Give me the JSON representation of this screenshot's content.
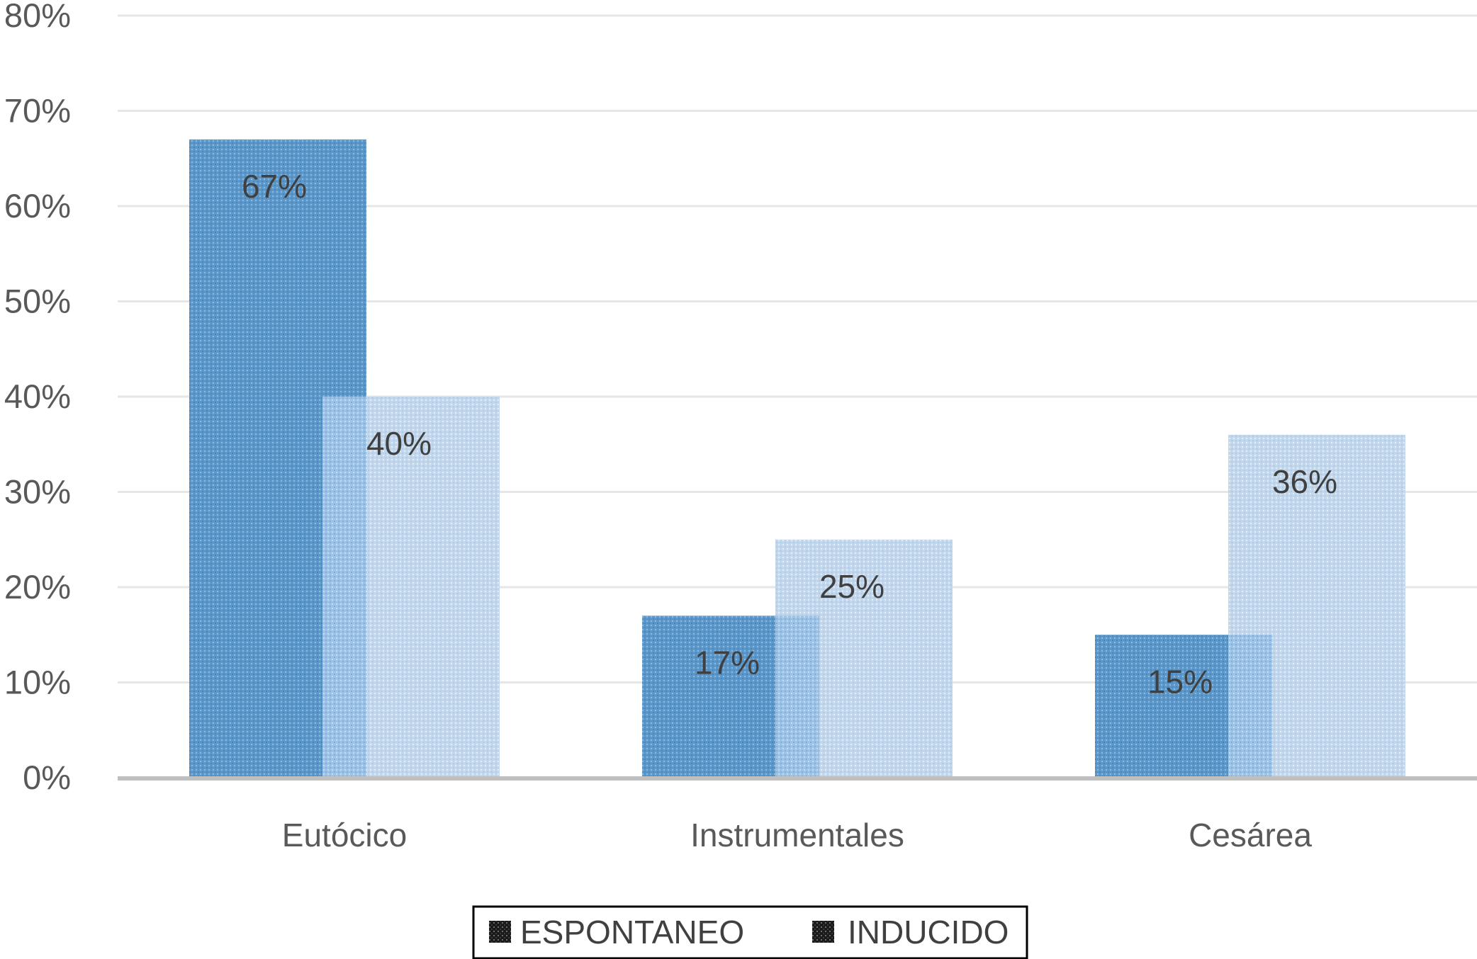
{
  "chart_data": {
    "type": "bar",
    "categories": [
      "Eutócico",
      "Instrumentales",
      "Cesárea"
    ],
    "series": [
      {
        "name": "ESPONTANEO",
        "values": [
          67,
          17,
          15
        ],
        "labels": [
          "67%",
          "17%",
          "15%"
        ],
        "color": "#5b97c9"
      },
      {
        "name": "INDUCIDO",
        "values": [
          40,
          25,
          36
        ],
        "labels": [
          "40%",
          "25%",
          "36%"
        ],
        "color": "#c2d7ec"
      }
    ],
    "y_ticks": [
      "0%",
      "10%",
      "20%",
      "30%",
      "40%",
      "50%",
      "60%",
      "70%",
      "80%"
    ],
    "ylim": [
      0,
      80
    ],
    "unit": "%",
    "grid": true,
    "legend_position": "bottom",
    "colors": {
      "grid": "#e6e6e6",
      "axis": "#bfbfbf",
      "overlap": "#9cc3e6",
      "legend_border": "#000000"
    }
  }
}
